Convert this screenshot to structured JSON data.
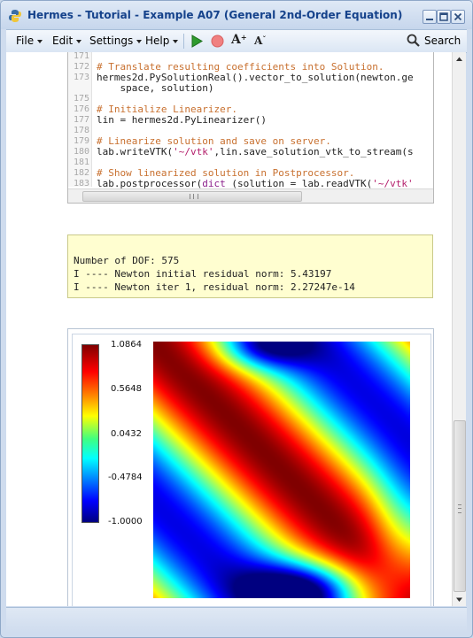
{
  "window": {
    "title": "Hermes - Tutorial - Example A07 (General 2nd-Order Equation)",
    "icon": "python-logo-icon",
    "controls": [
      "minimize-icon",
      "maximize-icon",
      "close-icon"
    ]
  },
  "menubar": {
    "file": "File",
    "edit": "Edit",
    "settings": "Settings",
    "help": "Help",
    "search": "Search",
    "tools": [
      "run-icon",
      "stop-icon",
      "font-increase-icon",
      "font-decrease-icon"
    ]
  },
  "code": {
    "lines": [
      {
        "n": "171",
        "t": ""
      },
      {
        "n": "172",
        "t": "# Translate resulting coefficients into Solution."
      },
      {
        "n": "173",
        "t": "hermes2d.PySolutionReal().vector_to_solution(newton.ge"
      },
      {
        "n": "",
        "t": "    space, solution)"
      },
      {
        "n": "175",
        "t": ""
      },
      {
        "n": "176",
        "t": "# Initialize Linearizer."
      },
      {
        "n": "177",
        "t": "lin = hermes2d.PyLinearizer()"
      },
      {
        "n": "178",
        "t": ""
      },
      {
        "n": "179",
        "t": "# Linearize solution and save on server."
      },
      {
        "n": "180",
        "t": "lab.writeVTK('~/vtk',lin.save_solution_vtk_to_stream(s"
      },
      {
        "n": "181",
        "t": ""
      },
      {
        "n": "182",
        "t": "# Show linearized solution in Postprocessor."
      },
      {
        "n": "183",
        "t": "lab.postprocessor(dict (solution = lab.readVTK('~/vtk'"
      }
    ]
  },
  "output": {
    "lines": [
      "Number of DOF: 575",
      "I ---- Newton initial residual norm: 5.43197",
      "I ---- Newton iter 1, residual norm: 2.27247e-14"
    ]
  },
  "plot": {
    "colorbar_labels": [
      "1.0864",
      "0.5648",
      "0.0432",
      "-0.4784",
      "-1.0000"
    ],
    "colormap": [
      "#000080",
      "#0000ff",
      "#00ffff",
      "#ffff00",
      "#ff0000",
      "#800000"
    ]
  }
}
